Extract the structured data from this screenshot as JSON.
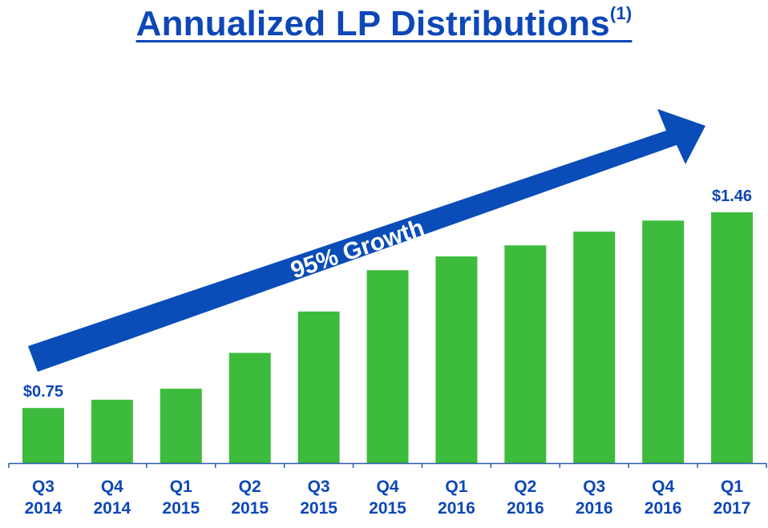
{
  "title": {
    "text": "Annualized LP Distributions",
    "superscript": "(1)"
  },
  "colors": {
    "bar": "#3dbb3d",
    "accent": "#0d47b8",
    "arrow": "#0a4db8",
    "axis": "#2a5db0"
  },
  "annotation": {
    "growth_text": "95% Growth"
  },
  "chart_data": {
    "type": "bar",
    "title": "Annualized LP Distributions(1)",
    "categories": [
      [
        "Q3",
        "2014"
      ],
      [
        "Q4",
        "2014"
      ],
      [
        "Q1",
        "2015"
      ],
      [
        "Q2",
        "2015"
      ],
      [
        "Q3",
        "2015"
      ],
      [
        "Q4",
        "2015"
      ],
      [
        "Q1",
        "2016"
      ],
      [
        "Q2",
        "2016"
      ],
      [
        "Q3",
        "2016"
      ],
      [
        "Q4",
        "2016"
      ],
      [
        "Q1",
        "2017"
      ]
    ],
    "values": [
      0.75,
      0.78,
      0.82,
      0.95,
      1.1,
      1.25,
      1.3,
      1.34,
      1.39,
      1.43,
      1.46
    ],
    "data_labels": [
      {
        "index": 0,
        "text": "$0.75"
      },
      {
        "index": 10,
        "text": "$1.46"
      }
    ],
    "xlabel": "",
    "ylabel": "",
    "ylim": [
      0.55,
      1.6
    ],
    "grid": false,
    "legend": "none"
  }
}
